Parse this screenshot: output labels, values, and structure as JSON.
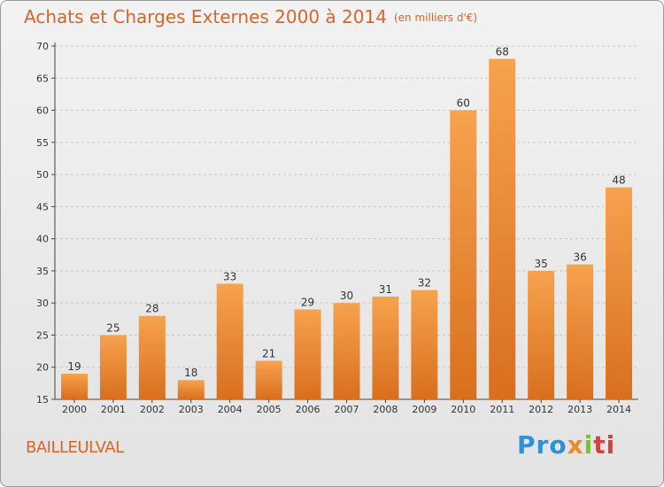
{
  "title": "Achats et Charges Externes 2000 à 2014",
  "subtitle": "(en milliers d'€)",
  "location": "BAILLEULVAL",
  "logo": {
    "p1": "Pro",
    "p2": "x",
    "p3": "i",
    "p4": "ti"
  },
  "colors": {
    "bar_top": "#f7a24e",
    "bar_bottom": "#d86f1e",
    "text_accent": "#d9652b",
    "grid": "#c8c8c8"
  },
  "chart_data": {
    "type": "bar",
    "title": "Achats et Charges Externes 2000 à 2014",
    "subtitle": "(en milliers d'€)",
    "categories": [
      "2000",
      "2001",
      "2002",
      "2003",
      "2004",
      "2005",
      "2006",
      "2007",
      "2008",
      "2009",
      "2010",
      "2011",
      "2012",
      "2013",
      "2014"
    ],
    "values": [
      19,
      25,
      28,
      18,
      33,
      21,
      29,
      30,
      31,
      32,
      60,
      68,
      35,
      36,
      48
    ],
    "ylim": [
      15,
      70
    ],
    "yticks": [
      15,
      20,
      25,
      30,
      35,
      40,
      45,
      50,
      55,
      60,
      65,
      70
    ],
    "grid": true,
    "xlabel": "",
    "ylabel": ""
  }
}
